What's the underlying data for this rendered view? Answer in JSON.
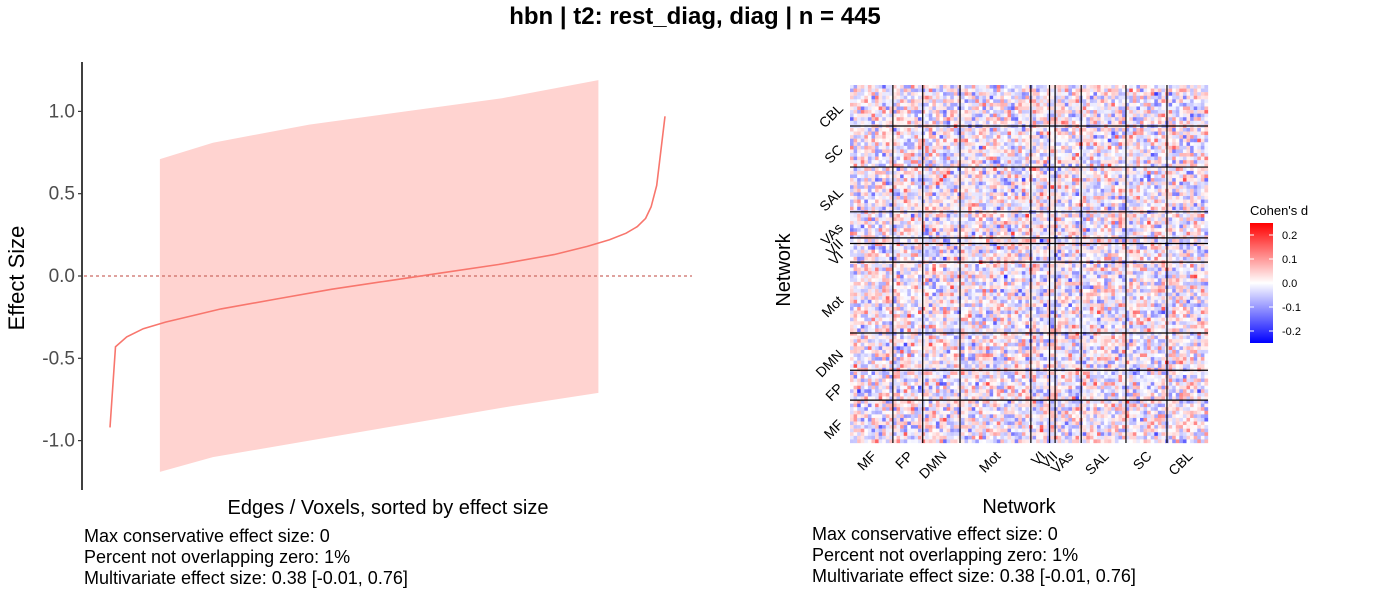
{
  "title": "hbn | t2: rest_diag, diag | n = 445",
  "chart_data": [
    {
      "type": "area",
      "description_series": [
        "effect size (sorted)",
        "confidence band"
      ],
      "xlabel": "Edges / Voxels, sorted by effect size",
      "ylabel": "Effect Size",
      "ylim": [
        -1.3,
        1.3
      ],
      "yticks": [
        "1.0",
        "0.5",
        "0.0",
        "-0.5",
        "-1.0"
      ],
      "ytick_values": [
        1.0,
        0.5,
        0.0,
        -0.5,
        -1.0
      ],
      "reference_line": 0,
      "x_range": [
        0,
        1
      ],
      "line": {
        "x": [
          0.0,
          0.01,
          0.03,
          0.06,
          0.1,
          0.15,
          0.2,
          0.3,
          0.4,
          0.5,
          0.6,
          0.7,
          0.8,
          0.86,
          0.9,
          0.93,
          0.95,
          0.965,
          0.975,
          0.985,
          1.0
        ],
        "y": [
          -0.92,
          -0.43,
          -0.37,
          -0.32,
          -0.28,
          -0.24,
          -0.2,
          -0.14,
          -0.08,
          -0.03,
          0.02,
          0.07,
          0.13,
          0.18,
          0.22,
          0.26,
          0.3,
          0.35,
          0.42,
          0.55,
          0.97
        ]
      },
      "band": {
        "x": [
          0.09,
          0.2,
          0.4,
          0.6,
          0.8,
          1.0
        ],
        "upper": [
          0.71,
          0.81,
          0.92,
          1.0,
          1.08,
          1.19
        ],
        "lower": [
          -1.19,
          -1.1,
          -1.0,
          -0.9,
          -0.8,
          -0.71
        ],
        "x_end": 0.88
      },
      "line_color": "#f8766d",
      "band_color": "#ffd3d0"
    },
    {
      "type": "heatmap",
      "xlabel": "Network",
      "ylabel": "Network",
      "networks": [
        "MF",
        "FP",
        "DMN",
        "Mot",
        "VI",
        "VII",
        "VAs",
        "SAL",
        "SC",
        "CBL"
      ],
      "network_fractions": [
        0.115,
        0.08,
        0.1,
        0.19,
        0.05,
        0.015,
        0.07,
        0.12,
        0.11,
        0.11
      ],
      "legend_title": "Cohen's d",
      "legend_ticks": [
        "0.2",
        "0.1",
        "0.0",
        "-0.1",
        "-0.2"
      ],
      "legend_tick_values": [
        0.2,
        0.1,
        0.0,
        -0.1,
        -0.2
      ],
      "color_range": [
        -0.25,
        0.25
      ],
      "colors": {
        "low": "#0000ff",
        "mid": "#ffffff",
        "high": "#ff0000"
      },
      "seed": 445
    }
  ],
  "captions": {
    "left": [
      "Max conservative effect size: 0",
      "Percent not overlapping zero: 1%",
      "Multivariate effect size: 0.38 [-0.01, 0.76]"
    ],
    "right": [
      "Max conservative effect size: 0",
      "Percent not overlapping zero: 1%",
      "Multivariate effect size: 0.38 [-0.01, 0.76]"
    ]
  }
}
